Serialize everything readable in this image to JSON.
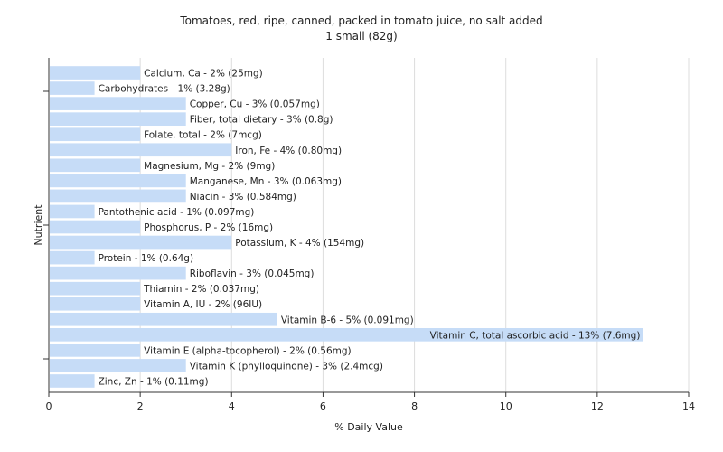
{
  "chart_data": {
    "type": "bar",
    "orientation": "horizontal",
    "title": "Tomatoes, red, ripe, canned, packed in tomato juice, no salt added",
    "subtitle": "1 small (82g)",
    "xlabel": "% Daily Value",
    "ylabel": "Nutrient",
    "xlim": [
      0,
      14
    ],
    "xticks": [
      0,
      2,
      4,
      6,
      8,
      10,
      12,
      14
    ],
    "grid": true,
    "bar_color": "#c6dcf7",
    "categories": [
      "Calcium, Ca - 2% (25mg)",
      "Carbohydrates - 1% (3.28g)",
      "Copper, Cu - 3% (0.057mg)",
      "Fiber, total dietary - 3% (0.8g)",
      "Folate, total - 2% (7mcg)",
      "Iron, Fe - 4% (0.80mg)",
      "Magnesium, Mg - 2% (9mg)",
      "Manganese, Mn - 3% (0.063mg)",
      "Niacin - 3% (0.584mg)",
      "Pantothenic acid - 1% (0.097mg)",
      "Phosphorus, P - 2% (16mg)",
      "Potassium, K - 4% (154mg)",
      "Protein - 1% (0.64g)",
      "Riboflavin - 3% (0.045mg)",
      "Thiamin - 2% (0.037mg)",
      "Vitamin A, IU - 2% (96IU)",
      "Vitamin B-6 - 5% (0.091mg)",
      "Vitamin C, total ascorbic acid - 13% (7.6mg)",
      "Vitamin E (alpha-tocopherol) - 2% (0.56mg)",
      "Vitamin K (phylloquinone) - 3% (2.4mcg)",
      "Zinc, Zn - 1% (0.11mg)"
    ],
    "values": [
      2,
      1,
      3,
      3,
      2,
      4,
      2,
      3,
      3,
      1,
      2,
      4,
      1,
      3,
      2,
      2,
      5,
      13,
      2,
      3,
      1
    ],
    "label_inside": [
      false,
      false,
      false,
      false,
      false,
      false,
      false,
      false,
      false,
      false,
      false,
      false,
      false,
      false,
      false,
      false,
      false,
      true,
      false,
      false,
      false
    ]
  }
}
